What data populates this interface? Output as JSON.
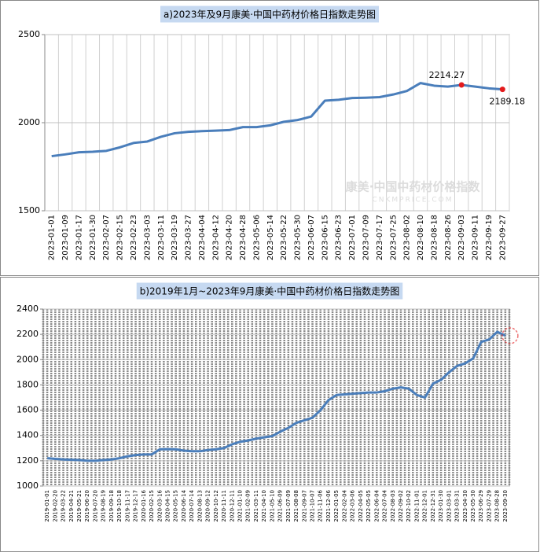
{
  "chart_data": [
    {
      "type": "line",
      "title": "a)2023年及9月康美·中国中药材价格日指数走势图",
      "watermark": [
        "康美·中国中药材价格指数",
        "CNKMPRICE.COM"
      ],
      "categories": [
        "2023-01-01",
        "2023-01-09",
        "2023-01-17",
        "2023-01-30",
        "2023-02-07",
        "2023-02-15",
        "2023-02-23",
        "2023-03-03",
        "2023-03-11",
        "2023-03-19",
        "2023-03-27",
        "2023-04-04",
        "2023-04-12",
        "2023-04-20",
        "2023-04-28",
        "2023-05-06",
        "2023-05-14",
        "2023-05-22",
        "2023-05-30",
        "2023-06-07",
        "2023-06-15",
        "2023-06-23",
        "2023-07-01",
        "2023-07-09",
        "2023-07-17",
        "2023-07-25",
        "2023-08-02",
        "2023-08-10",
        "2023-08-18",
        "2023-08-26",
        "2023-09-03",
        "2023-09-11",
        "2023-09-19",
        "2023-09-27"
      ],
      "values": [
        1810,
        1820,
        1832,
        1835,
        1840,
        1860,
        1885,
        1893,
        1920,
        1940,
        1948,
        1952,
        1955,
        1958,
        1975,
        1975,
        1985,
        2005,
        2015,
        2035,
        2125,
        2130,
        2140,
        2142,
        2145,
        2160,
        2180,
        2225,
        2210,
        2205,
        2214.27,
        2205,
        2195,
        2189.18
      ],
      "value_labels": [
        null,
        null,
        null,
        null,
        null,
        null,
        null,
        null,
        null,
        null,
        null,
        null,
        null,
        null,
        null,
        null,
        null,
        null,
        null,
        null,
        null,
        null,
        null,
        null,
        null,
        null,
        null,
        null,
        null,
        null,
        "2214.27",
        null,
        null,
        "2189.18"
      ],
      "color": "#4a7ebb",
      "marker_color": "#e31a1c",
      "ylim": [
        1500,
        2500
      ],
      "yticks": [
        1500,
        2000,
        2500
      ],
      "grid": true,
      "vgrid": false
    },
    {
      "type": "line",
      "title": "b)2019年1月~2023年9月康美·中国中药材价格日指数走势图",
      "categories": [
        "2019-01-01",
        "2019-02-20",
        "2019-03-22",
        "2019-04-21",
        "2019-05-21",
        "2019-06-20",
        "2019-07-20",
        "2019-08-19",
        "2019-09-18",
        "2019-10-18",
        "2019-11-17",
        "2019-12-17",
        "2020-01-16",
        "2020-02-15",
        "2020-03-16",
        "2020-04-15",
        "2020-05-15",
        "2020-06-14",
        "2020-07-14",
        "2020-08-13",
        "2020-09-12",
        "2020-10-12",
        "2020-11-11",
        "2020-12-11",
        "2021-01-10",
        "2021-02-09",
        "2021-03-11",
        "2021-04-10",
        "2021-05-10",
        "2021-06-09",
        "2021-07-09",
        "2021-08-08",
        "2021-09-07",
        "2021-10-07",
        "2021-11-06",
        "2021-12-06",
        "2022-01-05",
        "2022-02-04",
        "2022-03-06",
        "2022-04-05",
        "2022-05-05",
        "2022-06-04",
        "2022-07-04",
        "2022-08-03",
        "2022-09-02",
        "2022-10-02",
        "2022-11-01",
        "2022-12-01",
        "2022-12-31",
        "2023-01-30",
        "2023-03-01",
        "2023-03-31",
        "2023-04-30",
        "2023-05-30",
        "2023-06-29",
        "2023-07-29",
        "2023-08-28",
        "2023-09-30"
      ],
      "values": [
        1220,
        1215,
        1210,
        1208,
        1205,
        1200,
        1200,
        1205,
        1210,
        1220,
        1235,
        1245,
        1250,
        1250,
        1290,
        1292,
        1290,
        1280,
        1275,
        1275,
        1285,
        1290,
        1300,
        1330,
        1350,
        1360,
        1375,
        1385,
        1395,
        1430,
        1460,
        1500,
        1520,
        1540,
        1600,
        1680,
        1720,
        1725,
        1730,
        1735,
        1740,
        1740,
        1750,
        1770,
        1780,
        1770,
        1720,
        1700,
        1810,
        1840,
        1900,
        1950,
        1970,
        2010,
        2140,
        2160,
        2220,
        2189.18
      ],
      "color": "#4a7ebb",
      "marker_color": "#e31a1c",
      "highlight_last": true,
      "ylim": [
        1000,
        2400
      ],
      "yticks": [
        1000,
        1200,
        1400,
        1600,
        1800,
        2000,
        2200,
        2400
      ],
      "grid": true,
      "vgrid": true
    }
  ]
}
